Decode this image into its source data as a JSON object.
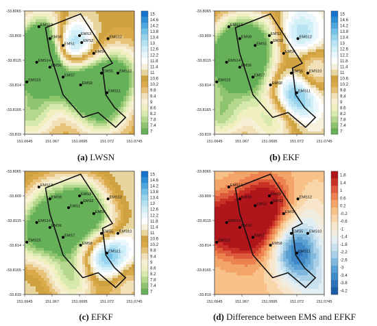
{
  "panels": [
    {
      "caption_letter": "(a)",
      "caption_text": "LWSN",
      "colormap": "main",
      "colorbar": [
        "15",
        "14.6",
        "14.2",
        "13.8",
        "13.4",
        "13",
        "12.6",
        "12.2",
        "11.8",
        "11.4",
        "11",
        "10.6",
        "10.2",
        "9.8",
        "9.4",
        "9",
        "8.6",
        "8.2",
        "7.8",
        "7.4",
        "7"
      ],
      "stations": [
        {
          "label": "EMS13",
          "lon": 151.0658,
          "lat": -33.8081
        },
        {
          "label": "EMS9",
          "lon": 151.0668,
          "lat": -33.8093
        },
        {
          "label": "EMS3",
          "lon": 151.0695,
          "lat": -33.809
        },
        {
          "label": "EMS12",
          "lon": 151.0721,
          "lat": -33.8093
        },
        {
          "label": "EMS2",
          "lon": 151.0697,
          "lat": -33.8097
        },
        {
          "label": "EMS1",
          "lon": 151.068,
          "lat": -33.81
        },
        {
          "label": "EMS4",
          "lon": 151.0708,
          "lat": -33.8108
        },
        {
          "label": "EMS14",
          "lon": 151.0656,
          "lat": -33.8117
        },
        {
          "label": "EMS6",
          "lon": 151.0668,
          "lat": -33.8122
        },
        {
          "label": "EMS7",
          "lon": 151.068,
          "lat": -33.8132
        },
        {
          "label": "EMS5",
          "lon": 151.0715,
          "lat": -33.8128
        },
        {
          "label": "EMS10",
          "lon": 151.073,
          "lat": -33.8128
        },
        {
          "label": "EMS15",
          "lon": 151.0647,
          "lat": -33.8137
        },
        {
          "label": "EMS8",
          "lon": 151.0696,
          "lat": -33.814
        },
        {
          "label": "EMS11",
          "lon": 151.072,
          "lat": -33.8148
        }
      ],
      "field_sources": [
        {
          "lon": 151.068,
          "lat": -33.81,
          "v": 7.0
        },
        {
          "lon": 151.0668,
          "lat": -33.8093,
          "v": -6.0
        },
        {
          "lon": 151.0656,
          "lat": -33.8117,
          "v": -4.5
        },
        {
          "lon": 151.0668,
          "lat": -33.8122,
          "v": -3.0
        },
        {
          "lon": 151.0696,
          "lat": -33.814,
          "v": -4.0
        },
        {
          "lon": 151.073,
          "lat": -33.8128,
          "v": -3.0
        },
        {
          "lon": 151.072,
          "lat": -33.8148,
          "v": -2.0
        },
        {
          "lon": 151.0715,
          "lat": -33.817,
          "v": -2.0
        },
        {
          "lon": 151.065,
          "lat": -33.817,
          "v": -2.5
        }
      ],
      "field_base": 10.6
    },
    {
      "caption_letter": "(b)",
      "caption_text": "EKF",
      "colormap": "main",
      "colorbar": [
        "15",
        "14.6",
        "14.2",
        "13.8",
        "13.4",
        "13",
        "12.6",
        "12.2",
        "11.8",
        "11.4",
        "11",
        "10.6",
        "10.2",
        "9.8",
        "9.4",
        "9",
        "8.6",
        "8.2",
        "7.8",
        "7.4",
        "7"
      ],
      "stations": [
        {
          "label": "EMS13",
          "lon": 151.0658,
          "lat": -33.8081
        },
        {
          "label": "EMS9",
          "lon": 151.0668,
          "lat": -33.8093
        },
        {
          "label": "EMS3",
          "lon": 151.0695,
          "lat": -33.809
        },
        {
          "label": "EMS12",
          "lon": 151.0721,
          "lat": -33.8093
        },
        {
          "label": "EMS2",
          "lon": 151.0697,
          "lat": -33.8097
        },
        {
          "label": "EMS1",
          "lon": 151.0682,
          "lat": -33.81
        },
        {
          "label": "EMS4",
          "lon": 151.0708,
          "lat": -33.8108
        },
        {
          "label": "EMS14",
          "lon": 151.0656,
          "lat": -33.8117
        },
        {
          "label": "EMS6",
          "lon": 151.0668,
          "lat": -33.8122
        },
        {
          "label": "EMS7",
          "lon": 151.068,
          "lat": -33.8132
        },
        {
          "label": "EMS5",
          "lon": 151.0715,
          "lat": -33.8128
        },
        {
          "label": "EMS10",
          "lon": 151.073,
          "lat": -33.8128
        },
        {
          "label": "EMS15",
          "lon": 151.0647,
          "lat": -33.8137
        },
        {
          "label": "EMS8",
          "lon": 151.0696,
          "lat": -33.814
        },
        {
          "label": "EMS11",
          "lon": 151.072,
          "lat": -33.8148
        }
      ],
      "field_sources": [
        {
          "lon": 151.072,
          "lat": -33.8148,
          "v": 5.0
        },
        {
          "lon": 151.0721,
          "lat": -33.8093,
          "v": 3.0
        },
        {
          "lon": 151.0668,
          "lat": -33.8093,
          "v": -3.5
        },
        {
          "lon": 151.0695,
          "lat": -33.8095,
          "v": -2.5
        },
        {
          "lon": 151.0656,
          "lat": -33.8117,
          "v": -4.0
        },
        {
          "lon": 151.068,
          "lat": -33.8132,
          "v": -3.0
        },
        {
          "lon": 151.073,
          "lat": -33.8128,
          "v": -4.0
        },
        {
          "lon": 151.07,
          "lat": -33.8175,
          "v": -3.0
        },
        {
          "lon": 151.065,
          "lat": -33.817,
          "v": -3.0
        }
      ],
      "field_base": 11.0
    },
    {
      "caption_letter": "(c)",
      "caption_text": "EFKF",
      "colormap": "main",
      "colorbar": [
        "15",
        "14.6",
        "14.2",
        "13.8",
        "13.4",
        "13",
        "12.6",
        "12.2",
        "11.8",
        "11.4",
        "11",
        "10.6",
        "10.2",
        "9.8",
        "9.4",
        "9",
        "8.6",
        "8.2",
        "7.8",
        "7.4",
        "7"
      ],
      "stations": [
        {
          "label": "EMS13",
          "lon": 151.0658,
          "lat": -33.8081
        },
        {
          "label": "EMS9",
          "lon": 151.0668,
          "lat": -33.8093
        },
        {
          "label": "EMS3",
          "lon": 151.0695,
          "lat": -33.809
        },
        {
          "label": "EMS12",
          "lon": 151.0721,
          "lat": -33.8093
        },
        {
          "label": "EMS2",
          "lon": 151.0697,
          "lat": -33.8097
        },
        {
          "label": "EMS1",
          "lon": 151.0685,
          "lat": -33.8102
        },
        {
          "label": "EMS4",
          "lon": 151.0708,
          "lat": -33.8108
        },
        {
          "label": "EMS14",
          "lon": 151.0656,
          "lat": -33.8117
        },
        {
          "label": "EMS6",
          "lon": 151.0668,
          "lat": -33.8122
        },
        {
          "label": "EMS7",
          "lon": 151.068,
          "lat": -33.8132
        },
        {
          "label": "EMS5",
          "lon": 151.0715,
          "lat": -33.8128
        },
        {
          "label": "EMS10",
          "lon": 151.073,
          "lat": -33.8128
        },
        {
          "label": "EMS15",
          "lon": 151.0647,
          "lat": -33.8137
        },
        {
          "label": "EMS8",
          "lon": 151.0696,
          "lat": -33.814
        },
        {
          "label": "EMS11",
          "lon": 151.072,
          "lat": -33.8148
        }
      ],
      "field_sources": [
        {
          "lon": 151.072,
          "lat": -33.8148,
          "v": 5.5
        },
        {
          "lon": 151.0697,
          "lat": -33.8097,
          "v": -4.0
        },
        {
          "lon": 151.0715,
          "lat": -33.8128,
          "v": -4.0
        },
        {
          "lon": 151.068,
          "lat": -33.8132,
          "v": -3.5
        },
        {
          "lon": 151.0656,
          "lat": -33.8117,
          "v": -2.0
        },
        {
          "lon": 151.0647,
          "lat": -33.8137,
          "v": -2.0
        },
        {
          "lon": 151.0668,
          "lat": -33.8093,
          "v": -2.0
        },
        {
          "lon": 151.069,
          "lat": -33.8175,
          "v": -3.0
        },
        {
          "lon": 151.0735,
          "lat": -33.8175,
          "v": -2.5
        }
      ],
      "field_base": 11.2
    },
    {
      "caption_letter": "(d)",
      "caption_text": "Difference between EMS and EFKF",
      "colormap": "diff",
      "colorbar": [
        "1.8",
        "1.4",
        "1",
        "0.6",
        "0.2",
        "-0.2",
        "-0.6",
        "-1",
        "-1.4",
        "-1.8",
        "-2.2",
        "-2.6",
        "-3",
        "-3.4",
        "-3.8",
        "-4.2"
      ],
      "stations": [
        {
          "label": "EMS13",
          "lon": 151.0658,
          "lat": -33.8081
        },
        {
          "label": "EMS9",
          "lon": 151.0668,
          "lat": -33.8093
        },
        {
          "label": "EMS3",
          "lon": 151.0695,
          "lat": -33.809
        },
        {
          "label": "EMS12",
          "lon": 151.0721,
          "lat": -33.8093
        },
        {
          "label": "EMS2",
          "lon": 151.0697,
          "lat": -33.8097
        },
        {
          "label": "EMS1",
          "lon": 151.0682,
          "lat": -33.81
        },
        {
          "label": "EMS4",
          "lon": 151.0708,
          "lat": -33.8108
        },
        {
          "label": "EMS14",
          "lon": 151.0656,
          "lat": -33.8117
        },
        {
          "label": "EMS6",
          "lon": 151.0668,
          "lat": -33.8122
        },
        {
          "label": "EMS7",
          "lon": 151.068,
          "lat": -33.8132
        },
        {
          "label": "EMS5",
          "lon": 151.0715,
          "lat": -33.8128
        },
        {
          "label": "EMS10",
          "lon": 151.073,
          "lat": -33.8128
        },
        {
          "label": "EMS15",
          "lon": 151.0647,
          "lat": -33.8137
        },
        {
          "label": "EMS8",
          "lon": 151.0696,
          "lat": -33.814
        },
        {
          "label": "EMS11",
          "lon": 151.072,
          "lat": -33.8148
        }
      ],
      "field_sources": [
        {
          "lon": 151.0652,
          "lat": -33.8118,
          "v": 2.2
        },
        {
          "lon": 151.068,
          "lat": -33.8132,
          "v": 1.6
        },
        {
          "lon": 151.0697,
          "lat": -33.8097,
          "v": 1.4
        },
        {
          "lon": 151.0682,
          "lat": -33.8102,
          "v": 1.2
        },
        {
          "lon": 151.072,
          "lat": -33.8148,
          "v": -3.2
        },
        {
          "lon": 151.074,
          "lat": -33.8185,
          "v": -1.2
        },
        {
          "lon": 151.073,
          "lat": -33.811,
          "v": -0.8
        }
      ],
      "field_base": -0.2
    }
  ],
  "axis": {
    "y_ticks": [
      "-33.8065",
      "-33.809",
      "-33.8115",
      "-33.814",
      "-33.8165",
      "-33.819"
    ],
    "x_ticks": [
      "151.0645",
      "151.067",
      "151.0695",
      "151.072",
      "151.0745"
    ],
    "lon_range": [
      151.0645,
      151.0745
    ],
    "lat_range": [
      -33.819,
      -33.8065
    ]
  },
  "boundary": [
    {
      "lon": 151.0664,
      "lat": -33.8082
    },
    {
      "lon": 151.0696,
      "lat": -33.8068
    },
    {
      "lon": 151.0725,
      "lat": -33.8118
    },
    {
      "lon": 151.0716,
      "lat": -33.8123
    },
    {
      "lon": 151.0719,
      "lat": -33.815
    },
    {
      "lon": 151.0727,
      "lat": -33.8163
    },
    {
      "lon": 151.0737,
      "lat": -33.8173
    },
    {
      "lon": 151.0728,
      "lat": -33.8183
    },
    {
      "lon": 151.0712,
      "lat": -33.8168
    },
    {
      "lon": 151.0698,
      "lat": -33.8173
    },
    {
      "lon": 151.068,
      "lat": -33.815
    },
    {
      "lon": 151.0675,
      "lat": -33.8132
    },
    {
      "lon": 151.0668,
      "lat": -33.8108
    }
  ],
  "colors": {
    "main": [
      "#67b05a",
      "#8fc46f",
      "#b6d88e",
      "#d7e9ac",
      "#f0efbf",
      "#f7f0d4",
      "#f2e1b8",
      "#e7c27a",
      "#d9a94a",
      "#cfa241",
      "#e8d59e",
      "#f6f0dc",
      "#ffffff",
      "#e9f6fb",
      "#d2eef7",
      "#b7e3f3",
      "#98d4ee",
      "#74c1e7",
      "#4ea8de",
      "#2c8fd6",
      "#1873cc"
    ],
    "diff": [
      "#1c5aa6",
      "#2b72b8",
      "#3f8ac6",
      "#5aa0d2",
      "#7fb8dc",
      "#a7cfe6",
      "#cae2ef",
      "#e3eef3",
      "#f1ece0",
      "#f7e6cc",
      "#f9d6a9",
      "#f7c187",
      "#f3a468",
      "#ec8250",
      "#de5a3c",
      "#c93025",
      "#b0151c"
    ]
  }
}
